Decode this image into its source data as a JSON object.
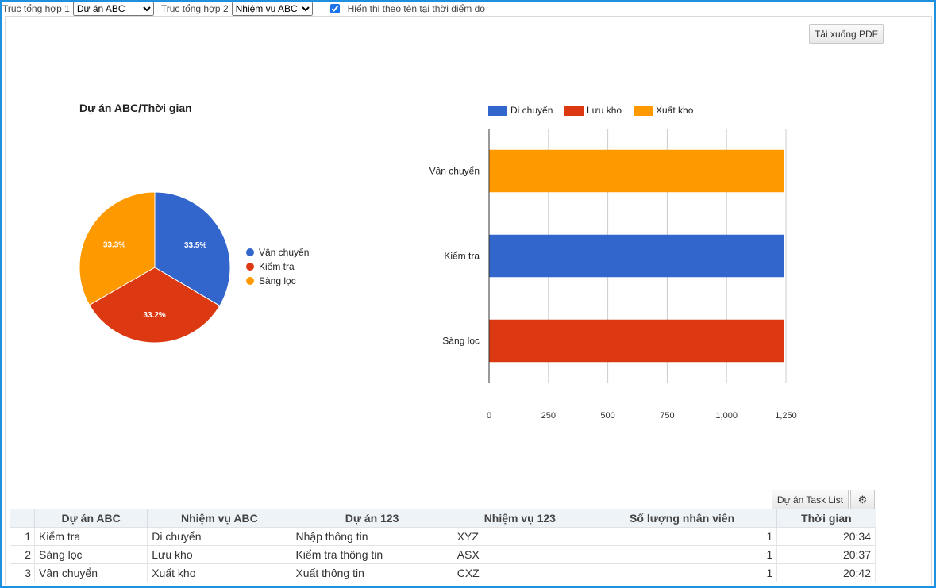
{
  "toolbar": {
    "axis1_label": "Trục tổng hợp 1",
    "axis1_value": "Dự án ABC",
    "axis2_label": "Trục tổng hợp 2",
    "axis2_value": "Nhiệm vụ ABC",
    "show_name_checked": true,
    "show_name_label": "Hiển thị theo tên tại thời điểm đó"
  },
  "download_pdf_label": "Tải xuống PDF",
  "task_list_label": "Dự án Task List",
  "icons": {
    "settings": "gear-icon",
    "dropdown": "chevron-down-icon",
    "checkbox": "checkbox-checked-icon"
  },
  "chart_data": [
    {
      "type": "pie",
      "title": "Dự án ABC/Thời gian",
      "slices": [
        {
          "label": "Vận chuyển",
          "value": 33.5,
          "display": "33.5%",
          "color": "#3366cc"
        },
        {
          "label": "Kiểm tra",
          "value": 33.2,
          "display": "33.2%",
          "color": "#dc3912"
        },
        {
          "label": "Sàng lọc",
          "value": 33.3,
          "display": "33.3%",
          "color": "#ff9900"
        }
      ],
      "legend_position": "right"
    },
    {
      "type": "bar",
      "orientation": "horizontal",
      "categories": [
        "Vận chuyển",
        "Kiểm tra",
        "Sàng lọc"
      ],
      "series": [
        {
          "name": "Di chuyển",
          "color": "#3366cc",
          "values": [
            0,
            1240,
            0
          ]
        },
        {
          "name": "Lưu kho",
          "color": "#dc3912",
          "values": [
            0,
            0,
            1242
          ]
        },
        {
          "name": "Xuất kho",
          "color": "#ff9900",
          "values": [
            1243,
            0,
            0
          ]
        }
      ],
      "xlim": [
        0,
        1250
      ],
      "x_ticks": [
        0,
        250,
        500,
        750,
        1000,
        1250
      ],
      "x_tick_labels": [
        "0",
        "250",
        "500",
        "750",
        "1,000",
        "1,250"
      ],
      "grid": true,
      "legend_position": "top"
    }
  ],
  "table": {
    "columns": [
      "Dự án ABC",
      "Nhiệm vụ ABC",
      "Dự án 123",
      "Nhiệm vụ 123",
      "Số lượng nhân viên",
      "Thời gian"
    ],
    "rows": [
      {
        "n": "1",
        "cells": [
          "Kiểm tra",
          "Di chuyển",
          "Nhập thông tin",
          "XYZ",
          "1",
          "20:34"
        ]
      },
      {
        "n": "2",
        "cells": [
          "Sàng lọc",
          "Lưu kho",
          "Kiểm tra thông tin",
          "ASX",
          "1",
          "20:37"
        ]
      },
      {
        "n": "3",
        "cells": [
          "Vận chuyển",
          "Xuất kho",
          "Xuất thông tin",
          "CXZ",
          "1",
          "20:42"
        ]
      }
    ]
  }
}
